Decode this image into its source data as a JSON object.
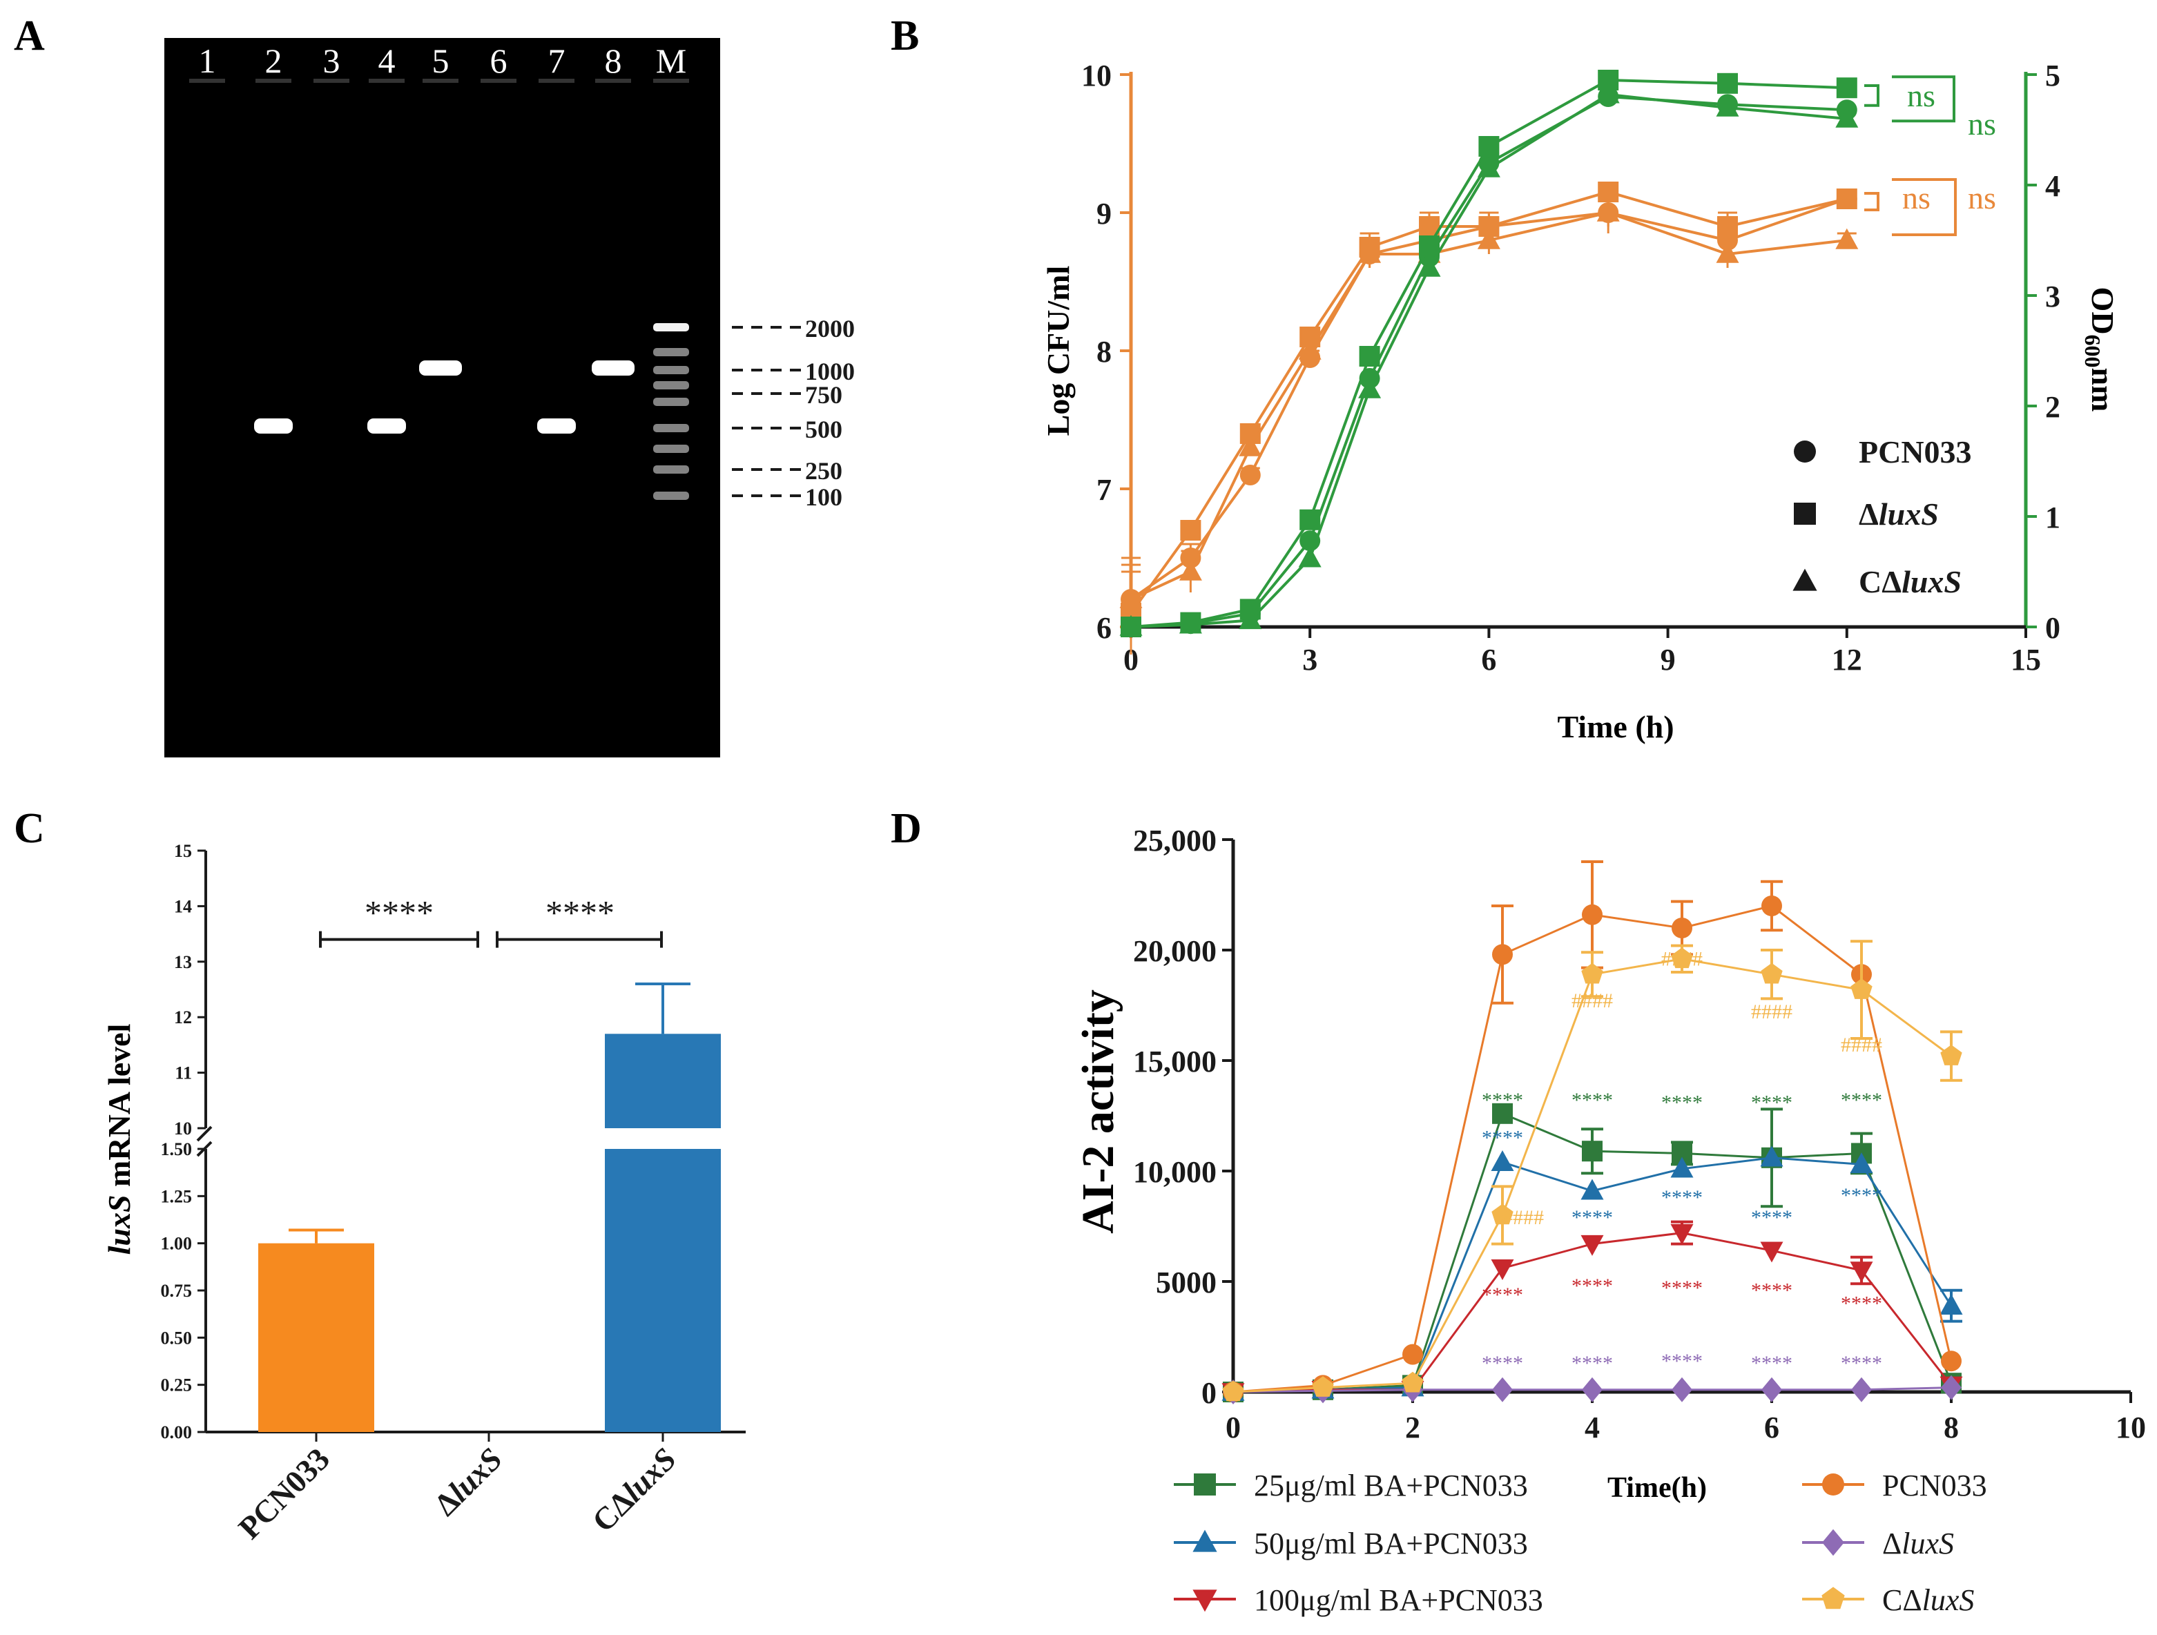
{
  "colors": {
    "orange": "#E8883A",
    "green": "#2E9A3E",
    "barOrange": "#F68A1F",
    "barBlue": "#2878B5",
    "dgreen": "#2F7A3B",
    "blue": "#2170A8",
    "red": "#C8282D",
    "purple": "#8E6BB5",
    "lorange": "#F3B54B",
    "dorange": "#E87A2A",
    "black": "#1a1a1a"
  },
  "panels": {
    "a": "A",
    "b": "B",
    "c": "C",
    "d": "D"
  },
  "gel": {
    "lanes": [
      "1",
      "2",
      "3",
      "4",
      "5",
      "6",
      "7",
      "8",
      "M"
    ],
    "markers": [
      "2000",
      "1000",
      "750",
      "500",
      "250",
      "100"
    ],
    "bands": [
      {
        "lane": "2",
        "size_bp": 500
      },
      {
        "lane": "4",
        "size_bp": 500
      },
      {
        "lane": "5",
        "size_bp": 1000
      },
      {
        "lane": "7",
        "size_bp": 500
      },
      {
        "lane": "8",
        "size_bp": 1000
      }
    ]
  },
  "chart_data": [
    {
      "id": "B",
      "type": "line",
      "xlabel": "Time (h)",
      "ylabel_left": "Log CFU/ml",
      "ylabel_right_main": "OD",
      "ylabel_right_sub": "600",
      "ylabel_right_unit": "nm",
      "x_ticks": [
        "0",
        "3",
        "6",
        "9",
        "12",
        "15"
      ],
      "y_left_ticks": [
        "6",
        "7",
        "8",
        "9",
        "10"
      ],
      "y_right_ticks": [
        "0",
        "1",
        "2",
        "3",
        "4",
        "5"
      ],
      "xlim": [
        0,
        15
      ],
      "ylim_left": [
        6,
        10
      ],
      "ylim_right": [
        0,
        5
      ],
      "legend": [
        {
          "marker": "circle",
          "text": "PCN033",
          "italic_part": ""
        },
        {
          "marker": "square",
          "text": "Δ",
          "italic_part": "luxS"
        },
        {
          "marker": "triangle",
          "text": "CΔ",
          "italic_part": "luxS"
        }
      ],
      "sig": [
        "ns",
        "ns",
        "ns",
        "ns"
      ],
      "x": [
        0,
        1,
        2,
        3,
        4,
        5,
        6,
        8,
        10,
        12
      ],
      "series": [
        {
          "name": "PCN033 CFU",
          "axis": "left",
          "color": "orange",
          "marker": "circle",
          "values": [
            6.2,
            6.5,
            7.1,
            7.95,
            8.7,
            8.8,
            8.9,
            9.0,
            8.8,
            9.1
          ],
          "err": [
            0.25,
            0.1,
            0.05,
            0.05,
            0.1,
            0.1,
            0.1,
            0.1,
            0.1,
            0.05
          ]
        },
        {
          "name": "ΔluxS CFU",
          "axis": "left",
          "color": "orange",
          "marker": "square",
          "values": [
            6.1,
            6.7,
            7.4,
            8.1,
            8.75,
            8.9,
            8.9,
            9.15,
            8.9,
            9.1
          ],
          "err": [
            0.3,
            0.05,
            0.05,
            0.05,
            0.1,
            0.1,
            0.1,
            0.05,
            0.1,
            0.05
          ]
        },
        {
          "name": "CΔluxS CFU",
          "axis": "left",
          "color": "orange",
          "marker": "triangle",
          "values": [
            6.2,
            6.4,
            7.3,
            8.0,
            8.7,
            8.7,
            8.8,
            9.0,
            8.7,
            8.8
          ],
          "err": [
            0.3,
            0.15,
            0.05,
            0.05,
            0.1,
            0.1,
            0.1,
            0.15,
            0.1,
            0.05
          ]
        },
        {
          "name": "PCN033 OD",
          "axis": "right",
          "color": "green",
          "marker": "circle",
          "values": [
            0.0,
            0.03,
            0.12,
            0.78,
            2.25,
            3.35,
            4.2,
            4.8,
            4.73,
            4.68
          ],
          "err": [
            0,
            0,
            0,
            0,
            0,
            0,
            0,
            0,
            0,
            0
          ]
        },
        {
          "name": "ΔluxS OD",
          "axis": "right",
          "color": "green",
          "marker": "square",
          "values": [
            0.0,
            0.04,
            0.16,
            0.97,
            2.45,
            3.45,
            4.35,
            4.95,
            4.92,
            4.88
          ],
          "err": [
            0,
            0,
            0,
            0,
            0,
            0,
            0,
            0,
            0,
            0
          ]
        },
        {
          "name": "CΔluxS OD",
          "axis": "right",
          "color": "green",
          "marker": "triangle",
          "values": [
            0.0,
            0.02,
            0.06,
            0.62,
            2.15,
            3.25,
            4.15,
            4.82,
            4.7,
            4.6
          ],
          "err": [
            0,
            0,
            0,
            0,
            0,
            0,
            0,
            0,
            0,
            0
          ]
        }
      ]
    },
    {
      "id": "C",
      "type": "bar",
      "ylabel_italic": "luxS",
      "ylabel_rest": " mRNA level",
      "categories": [
        "PCN033",
        "ΔluxS",
        "CΔluxS"
      ],
      "cat_prefix": [
        "PCN033",
        "Δ",
        "CΔ"
      ],
      "cat_italic": [
        "",
        "luxS",
        "luxS"
      ],
      "values": [
        1.0,
        0.0,
        11.7
      ],
      "err": [
        0.07,
        0,
        0.9
      ],
      "lower_ticks": [
        "0.00",
        "0.25",
        "0.50",
        "0.75",
        "1.00",
        "1.25",
        "1.50"
      ],
      "upper_ticks": [
        "10",
        "11",
        "12",
        "13",
        "14",
        "15"
      ],
      "lower_range": [
        0,
        1.5
      ],
      "upper_range": [
        10,
        15
      ],
      "sig": [
        "****",
        "****"
      ]
    },
    {
      "id": "D",
      "type": "line",
      "xlabel": "Time(h)",
      "ylabel": "AI-2 activity",
      "x_ticks": [
        "0",
        "2",
        "4",
        "6",
        "8",
        "10"
      ],
      "y_ticks": [
        "0",
        "5000",
        "10,000",
        "15,000",
        "20,000",
        "25,000"
      ],
      "xlim": [
        0,
        10
      ],
      "ylim": [
        0,
        25000
      ],
      "legend": [
        {
          "name": "25μg/ml BA+PCN033",
          "italic_part": "",
          "series": 0
        },
        {
          "name": "50μg/ml BA+PCN033",
          "italic_part": "",
          "series": 1
        },
        {
          "name": "100μg/ml BA+PCN033",
          "italic_part": "",
          "series": 2
        },
        {
          "name": "PCN033",
          "italic_part": "",
          "series": 3
        },
        {
          "name": "Δ",
          "italic_part": "luxS",
          "series": 4
        },
        {
          "name": "CΔ",
          "italic_part": "luxS",
          "series": 5
        }
      ],
      "x": [
        0,
        1,
        2,
        3,
        4,
        5,
        6,
        7,
        8
      ],
      "series": [
        {
          "name": "25μg/ml BA+PCN033",
          "color": "dgreen",
          "marker": "square",
          "values": [
            0,
            100,
            300,
            12600,
            10900,
            10800,
            10600,
            10800,
            400
          ],
          "err": [
            0,
            0,
            0,
            0,
            1000,
            500,
            2200,
            900,
            0
          ],
          "stars": [
            null,
            null,
            null,
            "****",
            "****",
            "****",
            "****",
            "****",
            null
          ]
        },
        {
          "name": "50μg/ml BA+PCN033",
          "color": "blue",
          "marker": "triangle",
          "values": [
            0,
            100,
            200,
            10400,
            9100,
            10100,
            10600,
            10300,
            3900
          ],
          "err": [
            0,
            0,
            0,
            0,
            0,
            0,
            0,
            0,
            700
          ],
          "stars": [
            null,
            null,
            null,
            "****",
            "****",
            "****",
            "****",
            "****",
            null
          ]
        },
        {
          "name": "100μg/ml BA+PCN033",
          "color": "red",
          "marker": "triangle-down",
          "values": [
            0,
            100,
            100,
            5600,
            6700,
            7200,
            6400,
            5500,
            300
          ],
          "err": [
            0,
            0,
            0,
            0,
            0,
            500,
            0,
            600,
            0
          ],
          "stars": [
            null,
            null,
            null,
            "****",
            "****",
            "****",
            "****",
            "****",
            null
          ]
        },
        {
          "name": "PCN033",
          "color": "dorange",
          "marker": "circle",
          "values": [
            0,
            300,
            1700,
            19800,
            21600,
            21000,
            22000,
            18900,
            1400
          ],
          "err": [
            0,
            0,
            0,
            2200,
            2400,
            1200,
            1100,
            0,
            0
          ],
          "stars": []
        },
        {
          "name": "ΔluxS",
          "color": "purple",
          "marker": "diamond",
          "values": [
            0,
            50,
            100,
            100,
            100,
            100,
            100,
            100,
            200
          ],
          "err": [
            0,
            0,
            0,
            0,
            0,
            0,
            0,
            0,
            0
          ],
          "stars": [
            null,
            null,
            null,
            "****",
            "****",
            "****",
            "****",
            "****",
            null
          ]
        },
        {
          "name": "CΔluxS",
          "color": "lorange",
          "marker": "pentagon",
          "values": [
            0,
            200,
            400,
            8000,
            18900,
            19600,
            18900,
            18200,
            15200
          ],
          "err": [
            0,
            0,
            0,
            1300,
            1000,
            600,
            1100,
            2200,
            1100
          ],
          "stars": [
            null,
            null,
            null,
            "####",
            "####",
            "####",
            "####",
            "####",
            null
          ]
        }
      ]
    }
  ]
}
